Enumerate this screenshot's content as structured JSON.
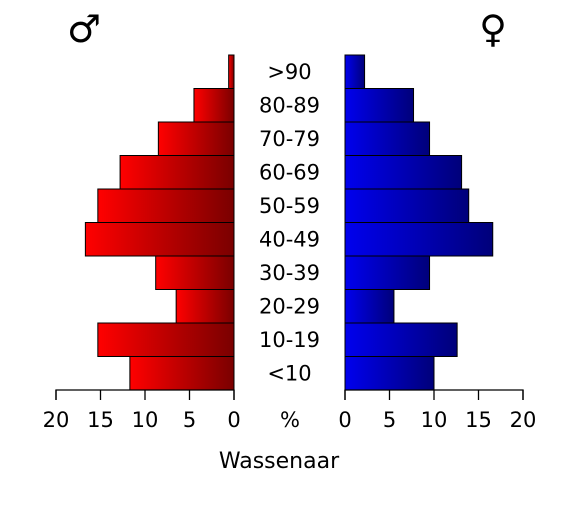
{
  "chart_data": {
    "type": "bar",
    "title": "Wassenaar",
    "unit_label": "%",
    "male_symbol": "♂",
    "female_symbol": "♀",
    "categories": [
      "<10",
      "10-19",
      "20-29",
      "30-39",
      "40-49",
      "50-59",
      "60-69",
      "70-79",
      "80-89",
      ">90"
    ],
    "series": [
      {
        "name": "♂",
        "values": [
          11.7,
          15.3,
          6.5,
          8.8,
          16.7,
          15.3,
          12.8,
          8.5,
          4.5,
          0.6
        ]
      },
      {
        "name": "♀",
        "values": [
          10.0,
          12.6,
          5.5,
          9.5,
          16.6,
          13.9,
          13.1,
          9.5,
          7.7,
          2.2
        ]
      }
    ],
    "xticks": [
      "20",
      "15",
      "10",
      "5",
      "0"
    ],
    "xlim": [
      0,
      20
    ],
    "colors": {
      "male_light": "#ff0000",
      "male_dark": "#7a0000",
      "female_light": "#0000ee",
      "female_dark": "#00007a"
    }
  }
}
